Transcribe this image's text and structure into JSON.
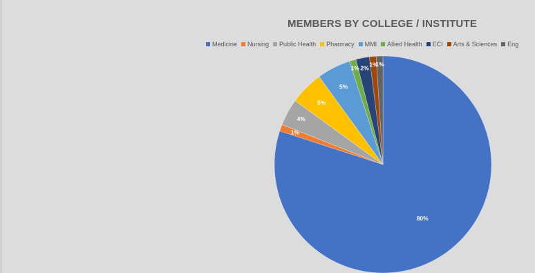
{
  "chart_data": {
    "type": "pie",
    "title": "MEMBERS BY COLLEGE / INSTITUTE",
    "legend_position": "top",
    "slices": [
      {
        "name": "Medicine",
        "value": 80,
        "label": "80%",
        "color": "#4472c4"
      },
      {
        "name": "Nursing",
        "value": 1,
        "label": "1%",
        "color": "#ed7d31"
      },
      {
        "name": "Public Health",
        "value": 4,
        "label": "4%",
        "color": "#a5a5a5"
      },
      {
        "name": "Pharmacy",
        "value": 5,
        "label": "5%",
        "color": "#ffc000"
      },
      {
        "name": "MMI",
        "value": 5,
        "label": "5%",
        "color": "#5b9bd5"
      },
      {
        "name": "Allied Health",
        "value": 1,
        "label": "1%",
        "color": "#70ad47"
      },
      {
        "name": "ECI",
        "value": 2,
        "label": "2%",
        "color": "#264478"
      },
      {
        "name": "Arts & Sciences",
        "value": 1,
        "label": "1%",
        "color": "#9e480e"
      },
      {
        "name": "Eng",
        "value": 1,
        "label": "1%",
        "color": "#636363"
      }
    ]
  }
}
